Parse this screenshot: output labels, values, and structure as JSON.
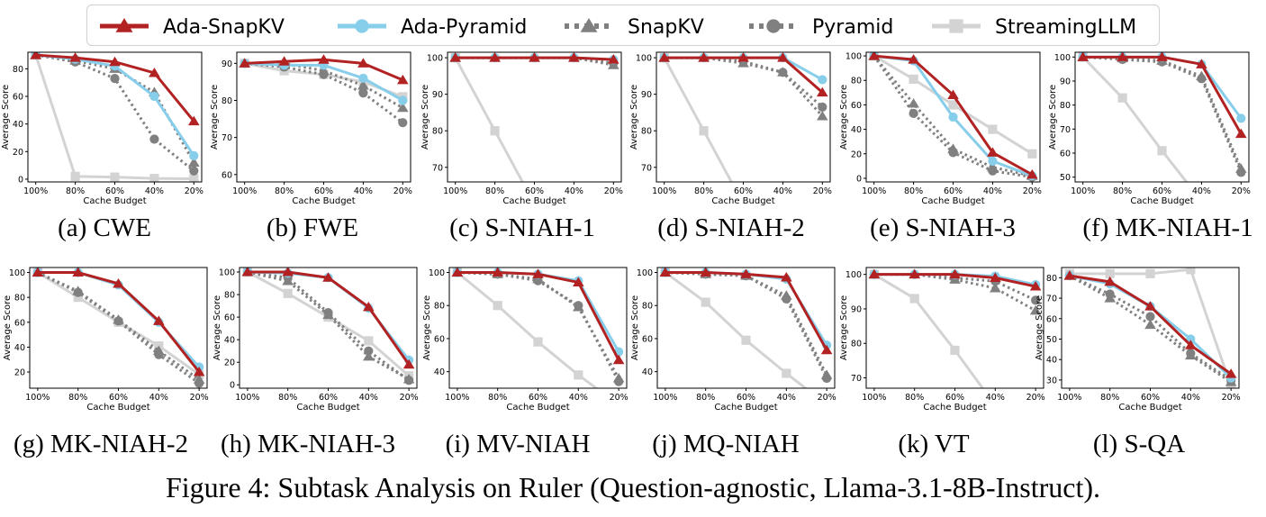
{
  "figure_caption": "Figure 4: Subtask Analysis on Ruler (Question-agnostic, Llama-3.1-8B-Instruct).",
  "legend": [
    {
      "name": "Ada-SnapKV",
      "color": "#b22222",
      "marker": "triangle",
      "style": "solid"
    },
    {
      "name": "Ada-Pyramid",
      "color": "#87ceeb",
      "marker": "circle",
      "style": "solid"
    },
    {
      "name": "SnapKV",
      "color": "#808080",
      "marker": "triangle",
      "style": "dotted"
    },
    {
      "name": "Pyramid",
      "color": "#808080",
      "marker": "circle",
      "style": "dotted"
    },
    {
      "name": "StreamingLLM",
      "color": "#d3d3d3",
      "marker": "square",
      "style": "solid"
    }
  ],
  "chart_data": [
    {
      "type": "line",
      "caption": "(a) CWE",
      "xlabel": "Cache Budget",
      "ylabel": "Average Score",
      "categories": [
        "100%",
        "80%",
        "60%",
        "40%",
        "20%"
      ],
      "ylim": [
        -2,
        92
      ],
      "yticks": [
        0,
        20,
        40,
        60,
        80
      ],
      "series": [
        {
          "name": "StreamingLLM",
          "values": [
            90,
            2,
            1.5,
            0.5,
            0.3
          ]
        },
        {
          "name": "Pyramid",
          "values": [
            90,
            85,
            73,
            29,
            6
          ]
        },
        {
          "name": "SnapKV",
          "values": [
            90,
            86,
            80,
            63,
            12
          ]
        },
        {
          "name": "Ada-Pyramid",
          "values": [
            90,
            87,
            82,
            60,
            17
          ]
        },
        {
          "name": "Ada-SnapKV",
          "values": [
            90,
            88,
            85,
            77,
            42
          ]
        }
      ]
    },
    {
      "type": "line",
      "caption": "(b) FWE",
      "xlabel": "Cache Budget",
      "ylabel": "Average Score",
      "categories": [
        "100%",
        "80%",
        "60%",
        "40%",
        "20%"
      ],
      "ylim": [
        58,
        93
      ],
      "yticks": [
        60,
        70,
        80,
        90
      ],
      "series": [
        {
          "name": "StreamingLLM",
          "values": [
            90,
            88,
            87,
            85,
            81
          ]
        },
        {
          "name": "Pyramid",
          "values": [
            90,
            89,
            87,
            82,
            74
          ]
        },
        {
          "name": "SnapKV",
          "values": [
            90,
            90,
            88,
            84,
            78
          ]
        },
        {
          "name": "Ada-Pyramid",
          "values": [
            90,
            89.5,
            89.5,
            86,
            80
          ]
        },
        {
          "name": "Ada-SnapKV",
          "values": [
            90,
            90.5,
            91,
            90,
            85.5
          ]
        }
      ]
    },
    {
      "type": "line",
      "caption": "(c) S-NIAH-1",
      "xlabel": "Cache Budget",
      "ylabel": "Average Score",
      "categories": [
        "100%",
        "80%",
        "60%",
        "40%",
        "20%"
      ],
      "ylim": [
        66,
        101.5
      ],
      "yticks": [
        70,
        80,
        90,
        100
      ],
      "series": [
        {
          "name": "StreamingLLM",
          "values": [
            100,
            80,
            60,
            null,
            null
          ]
        },
        {
          "name": "Pyramid",
          "values": [
            100,
            100,
            100,
            100,
            98.5
          ]
        },
        {
          "name": "SnapKV",
          "values": [
            100,
            100,
            100,
            100,
            98
          ]
        },
        {
          "name": "Ada-Pyramid",
          "values": [
            100,
            100,
            100,
            100,
            99.5
          ]
        },
        {
          "name": "Ada-SnapKV",
          "values": [
            100,
            100,
            100,
            100,
            99.5
          ]
        }
      ]
    },
    {
      "type": "line",
      "caption": "(d) S-NIAH-2",
      "xlabel": "Cache Budget",
      "ylabel": "Average Score",
      "categories": [
        "100%",
        "80%",
        "60%",
        "40%",
        "20%"
      ],
      "ylim": [
        66,
        101.5
      ],
      "yticks": [
        70,
        80,
        90,
        100
      ],
      "series": [
        {
          "name": "StreamingLLM",
          "values": [
            100,
            80,
            60,
            null,
            null
          ]
        },
        {
          "name": "Pyramid",
          "values": [
            100,
            100,
            99,
            96,
            86.5
          ]
        },
        {
          "name": "SnapKV",
          "values": [
            100,
            100,
            98.5,
            96,
            84
          ]
        },
        {
          "name": "Ada-Pyramid",
          "values": [
            100,
            100,
            100,
            100,
            94
          ]
        },
        {
          "name": "Ada-SnapKV",
          "values": [
            100,
            100,
            100,
            100,
            90.5
          ]
        }
      ]
    },
    {
      "type": "line",
      "caption": "(e) S-NIAH-3",
      "xlabel": "Cache Budget",
      "ylabel": "Average Score",
      "categories": [
        "100%",
        "80%",
        "60%",
        "40%",
        "20%"
      ],
      "ylim": [
        -3,
        103
      ],
      "yticks": [
        0,
        20,
        40,
        60,
        80,
        100
      ],
      "series": [
        {
          "name": "StreamingLLM",
          "values": [
            100,
            81,
            60,
            40,
            20
          ]
        },
        {
          "name": "Pyramid",
          "values": [
            100,
            53,
            21,
            6,
            1
          ]
        },
        {
          "name": "SnapKV",
          "values": [
            100,
            61,
            24,
            9,
            2
          ]
        },
        {
          "name": "Ada-Pyramid",
          "values": [
            100,
            96,
            50,
            14,
            2
          ]
        },
        {
          "name": "Ada-SnapKV",
          "values": [
            100,
            97,
            68,
            21,
            3
          ]
        }
      ]
    },
    {
      "type": "line",
      "caption": "(f) MK-NIAH-1",
      "xlabel": "Cache Budget",
      "ylabel": "Average Score",
      "categories": [
        "100%",
        "80%",
        "60%",
        "40%",
        "20%"
      ],
      "ylim": [
        48,
        102
      ],
      "yticks": [
        50,
        60,
        70,
        80,
        90,
        100
      ],
      "series": [
        {
          "name": "StreamingLLM",
          "values": [
            100,
            83,
            61,
            40,
            null
          ]
        },
        {
          "name": "Pyramid",
          "values": [
            100,
            99,
            98,
            91,
            52
          ]
        },
        {
          "name": "SnapKV",
          "values": [
            100,
            99.5,
            98.5,
            92,
            53.5
          ]
        },
        {
          "name": "Ada-Pyramid",
          "values": [
            100,
            100,
            100,
            97,
            74.5
          ]
        },
        {
          "name": "Ada-SnapKV",
          "values": [
            100,
            100,
            100,
            97,
            68
          ]
        }
      ]
    },
    {
      "type": "line",
      "caption": "(g) MK-NIAH-2",
      "xlabel": "Cache Budget",
      "ylabel": "Average Score",
      "categories": [
        "100%",
        "80%",
        "60%",
        "40%",
        "20%"
      ],
      "ylim": [
        7,
        104
      ],
      "yticks": [
        20,
        40,
        60,
        80,
        100
      ],
      "series": [
        {
          "name": "StreamingLLM",
          "values": [
            100,
            80,
            60,
            41,
            18
          ]
        },
        {
          "name": "Pyramid",
          "values": [
            100,
            84,
            61,
            34,
            11
          ]
        },
        {
          "name": "SnapKV",
          "values": [
            100,
            85,
            62,
            37,
            14
          ]
        },
        {
          "name": "Ada-Pyramid",
          "values": [
            100,
            100,
            90,
            60,
            24
          ]
        },
        {
          "name": "Ada-SnapKV",
          "values": [
            100,
            100,
            91,
            61,
            20
          ]
        }
      ]
    },
    {
      "type": "line",
      "caption": "(h) MK-NIAH-3",
      "xlabel": "Cache Budget",
      "ylabel": "Average Score",
      "categories": [
        "100%",
        "80%",
        "60%",
        "40%",
        "20%"
      ],
      "ylim": [
        -3,
        104
      ],
      "yticks": [
        0,
        20,
        40,
        60,
        80,
        100
      ],
      "series": [
        {
          "name": "StreamingLLM",
          "values": [
            100,
            81,
            60,
            39,
            8
          ]
        },
        {
          "name": "Pyramid",
          "values": [
            100,
            95,
            64,
            30,
            4
          ]
        },
        {
          "name": "SnapKV",
          "values": [
            100,
            92,
            62,
            25,
            5
          ]
        },
        {
          "name": "Ada-Pyramid",
          "values": [
            100,
            99,
            95,
            68,
            22
          ]
        },
        {
          "name": "Ada-SnapKV",
          "values": [
            100,
            100,
            95,
            69,
            18
          ]
        }
      ]
    },
    {
      "type": "line",
      "caption": "(i) MV-NIAH",
      "xlabel": "Cache Budget",
      "ylabel": "Average Score",
      "categories": [
        "100%",
        "80%",
        "60%",
        "40%",
        "20%"
      ],
      "ylim": [
        30,
        103
      ],
      "yticks": [
        40,
        60,
        80,
        100
      ],
      "series": [
        {
          "name": "StreamingLLM",
          "values": [
            100,
            80,
            58,
            38,
            20
          ]
        },
        {
          "name": "Pyramid",
          "values": [
            100,
            99,
            95,
            80,
            34
          ]
        },
        {
          "name": "SnapKV",
          "values": [
            100,
            99,
            96,
            79,
            36
          ]
        },
        {
          "name": "Ada-Pyramid",
          "values": [
            100,
            100,
            99,
            95,
            52
          ]
        },
        {
          "name": "Ada-SnapKV",
          "values": [
            100,
            100,
            99,
            94,
            47
          ]
        }
      ]
    },
    {
      "type": "line",
      "caption": "(j) MQ-NIAH",
      "xlabel": "Cache Budget",
      "ylabel": "Average Score",
      "categories": [
        "100%",
        "80%",
        "60%",
        "40%",
        "20%"
      ],
      "ylim": [
        30,
        103
      ],
      "yticks": [
        40,
        60,
        80,
        100
      ],
      "series": [
        {
          "name": "StreamingLLM",
          "values": [
            100,
            82,
            59,
            39,
            20
          ]
        },
        {
          "name": "Pyramid",
          "values": [
            100,
            99,
            98,
            84,
            36
          ]
        },
        {
          "name": "SnapKV",
          "values": [
            100,
            99,
            98,
            86,
            38
          ]
        },
        {
          "name": "Ada-Pyramid",
          "values": [
            100,
            100,
            99,
            96,
            56
          ]
        },
        {
          "name": "Ada-SnapKV",
          "values": [
            100,
            100,
            99,
            97,
            53
          ]
        }
      ]
    },
    {
      "type": "line",
      "caption": "(k) VT",
      "xlabel": "Cache Budget",
      "ylabel": "Average Score",
      "categories": [
        "100%",
        "80%",
        "60%",
        "40%",
        "20%"
      ],
      "ylim": [
        67,
        102
      ],
      "yticks": [
        70,
        80,
        90,
        100
      ],
      "series": [
        {
          "name": "StreamingLLM",
          "values": [
            100,
            93,
            78,
            62,
            null
          ]
        },
        {
          "name": "Pyramid",
          "values": [
            100,
            100,
            99,
            98,
            92.5
          ]
        },
        {
          "name": "SnapKV",
          "values": [
            100,
            100,
            98.5,
            96,
            89.5
          ]
        },
        {
          "name": "Ada-Pyramid",
          "values": [
            100,
            100,
            100,
            99.5,
            97
          ]
        },
        {
          "name": "Ada-SnapKV",
          "values": [
            100,
            100,
            100,
            99,
            96.5
          ]
        }
      ]
    },
    {
      "type": "line",
      "caption": "(l) S-QA",
      "xlabel": "Cache Budget",
      "ylabel": "Average Score",
      "categories": [
        "100%",
        "80%",
        "60%",
        "40%",
        "20%"
      ],
      "ylim": [
        26,
        85
      ],
      "yticks": [
        30,
        40,
        50,
        60,
        70,
        80
      ],
      "series": [
        {
          "name": "StreamingLLM",
          "values": [
            82,
            82,
            82,
            84,
            27
          ]
        },
        {
          "name": "Pyramid",
          "values": [
            81,
            72,
            61,
            43,
            30
          ]
        },
        {
          "name": "SnapKV",
          "values": [
            81,
            70,
            57,
            42,
            29
          ]
        },
        {
          "name": "Ada-Pyramid",
          "values": [
            81,
            77,
            66,
            50,
            31
          ]
        },
        {
          "name": "Ada-SnapKV",
          "values": [
            81,
            78,
            66,
            47,
            33
          ]
        }
      ]
    }
  ]
}
